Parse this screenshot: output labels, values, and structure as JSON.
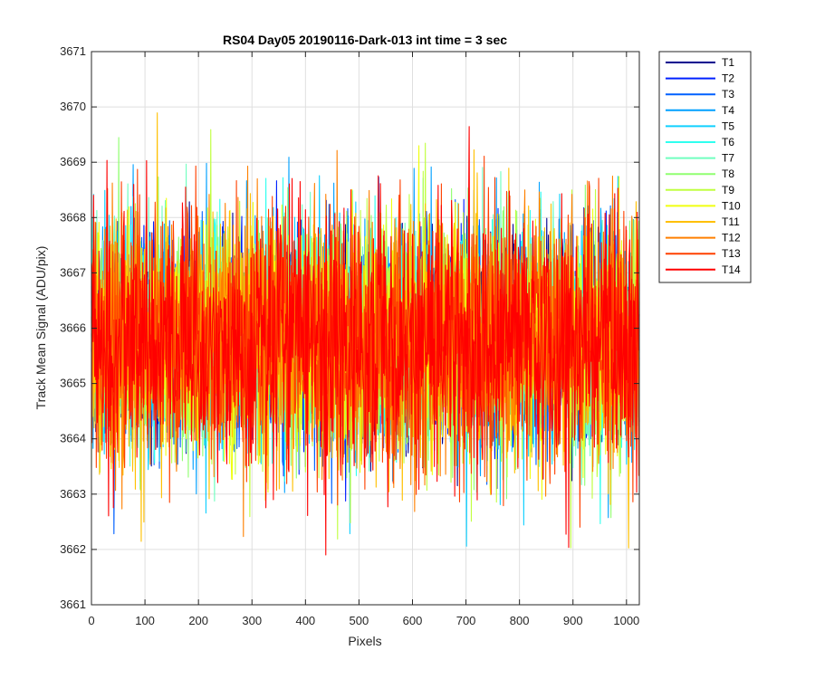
{
  "chart_data": {
    "type": "line",
    "title": "RS04 Day05 20190116-Dark-013 int time = 3 sec",
    "xlabel": "Pixels",
    "ylabel": "Track Mean Signal (ADU/pix)",
    "xlim": [
      0,
      1024
    ],
    "ylim": [
      3661,
      3671
    ],
    "xticks": [
      "0",
      "100",
      "200",
      "300",
      "400",
      "500",
      "600",
      "700",
      "800",
      "900",
      "1000"
    ],
    "yticks": [
      "3661",
      "3662",
      "3663",
      "3664",
      "3665",
      "3666",
      "3667",
      "3668",
      "3669",
      "3670",
      "3671"
    ],
    "grid": true,
    "legend_position": "outside-top-right",
    "noise": {
      "mean": 3665.8,
      "std": 1.0,
      "min": 3661.9,
      "max": 3670.2
    },
    "series": [
      {
        "name": "T1",
        "color": "#00008f"
      },
      {
        "name": "T2",
        "color": "#0020ff"
      },
      {
        "name": "T3",
        "color": "#0060ff"
      },
      {
        "name": "T4",
        "color": "#00a0ff"
      },
      {
        "name": "T5",
        "color": "#10d0ff"
      },
      {
        "name": "T6",
        "color": "#30ffef"
      },
      {
        "name": "T7",
        "color": "#70ffbf"
      },
      {
        "name": "T8",
        "color": "#90ff70"
      },
      {
        "name": "T9",
        "color": "#c0ff40"
      },
      {
        "name": "T10",
        "color": "#f0ff10"
      },
      {
        "name": "T11",
        "color": "#ffc000"
      },
      {
        "name": "T12",
        "color": "#ff8000"
      },
      {
        "name": "T13",
        "color": "#ff4000"
      },
      {
        "name": "T14",
        "color": "#ff0000"
      }
    ]
  }
}
